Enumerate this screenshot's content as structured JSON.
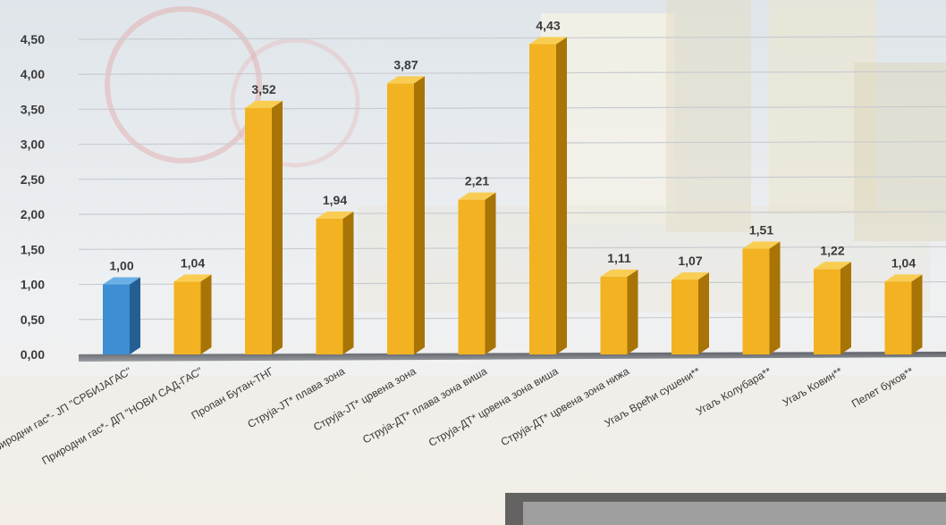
{
  "chart_data": {
    "type": "bar",
    "categories": [
      "Природни гас*- ЈП \"СРБИЈАГАС\"",
      "Природни гас*- ДП \"НОВИ САД-ГАС\"",
      "Пропан Бутан-ТНГ",
      "Струја-ЈТ*   плава зона",
      "Струја-ЈТ*   црвена зона",
      "Струја-ДТ*  плава зона   виша",
      "Струја-ДТ*  црвена зона виша",
      "Струја-ДТ*  црвена зона нижа",
      "Угаљ Врећи сушени**",
      "Угаљ Колубара**",
      "Угаљ Ковин**",
      "Пелет буков**"
    ],
    "values": [
      1.0,
      1.04,
      3.52,
      1.94,
      3.87,
      2.21,
      4.43,
      1.11,
      1.07,
      1.51,
      1.22,
      1.04
    ],
    "value_labels": [
      "1,00",
      "1,04",
      "3,52",
      "1,94",
      "3,87",
      "2,21",
      "4,43",
      "1,11",
      "1,07",
      "1,51",
      "1,22",
      "1,04"
    ],
    "yticks": [
      "0,00",
      "0,50",
      "1,00",
      "1,50",
      "2,00",
      "2,50",
      "3,00",
      "3,50",
      "4,00",
      "4,50"
    ],
    "ylim": [
      0,
      4.5
    ],
    "grid": true,
    "legend": "none",
    "highlight_index": 0,
    "colors": {
      "highlight": "#3d8ed2",
      "highlight_side": "#245f94",
      "highlight_top": "#6ab0e6",
      "bar": "#f2b221",
      "bar_side": "#a87406",
      "bar_top": "#f8cd52",
      "text": "#3a3a3a",
      "grid": "#c9ccd0"
    }
  }
}
